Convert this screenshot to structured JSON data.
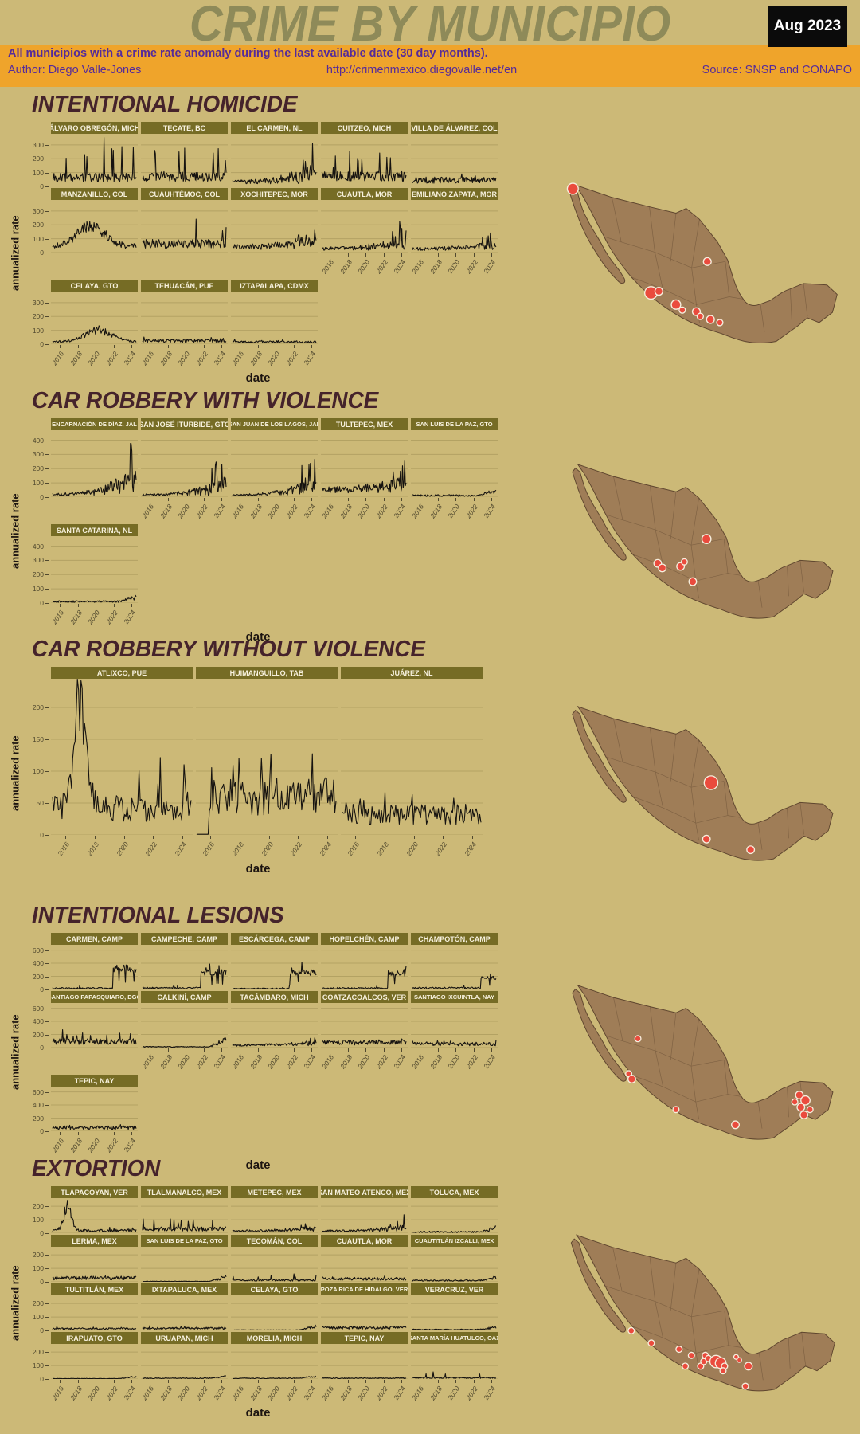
{
  "header": {
    "title": "CRIME BY MUNICIPIO",
    "date_badge": "Aug 2023",
    "subtitle": "All municipios with a crime rate anomaly during the last available date (30 day months).",
    "author": "Author: Diego Valle-Jones",
    "url": "http://crimenmexico.diegovalle.net/en",
    "source": "Source: SNSP and CONAPO"
  },
  "colors": {
    "background": "#ccb977",
    "title_olive": "#8e8a59",
    "banner_orange": "#efa42b",
    "banner_text_purple": "#552b9a",
    "section_title_maroon": "#45232b",
    "facet_header_olive": "#766c25",
    "line_black": "#161310",
    "map_brown": "#9f7d57",
    "map_border_brown": "#5f462f",
    "marker_red": "#ea4b3d",
    "marker_stroke": "#f6eedd"
  },
  "chart_data": {
    "type": "line",
    "xlabel": "date",
    "ylabel": "annualized rate",
    "x_ticks": [
      2016,
      2018,
      2020,
      2022,
      2024
    ],
    "x_range": [
      2015,
      2024.7
    ],
    "grid": true,
    "legend": "none",
    "sections": [
      {
        "title": "INTENTIONAL HOMICIDE",
        "y_ticks": [
          300,
          200,
          100,
          0
        ],
        "ylim": [
          0,
          380
        ],
        "rows": [
          [
            {
              "name": "ÁLVARO OBREGÓN, MICH",
              "shape": "spiky",
              "approx_mean": 70,
              "approx_max": 380
            },
            {
              "name": "TECATE, BC",
              "shape": "spiky",
              "approx_mean": 80,
              "approx_max": 300
            },
            {
              "name": "EL CARMEN, NL",
              "shape": "rise-spike",
              "approx_mean": 45,
              "approx_max": 260
            },
            {
              "name": "CUITZEO, MICH",
              "shape": "spiky",
              "approx_mean": 80,
              "approx_max": 270
            },
            {
              "name": "VILLA DE ÁLVAREZ, COL",
              "shape": "noisy",
              "approx_mean": 45,
              "approx_max": 120
            }
          ],
          [
            {
              "name": "MANZANILLO, COL",
              "shape": "hump",
              "approx_mean": 85,
              "approx_max": 235,
              "peak_at": 0.45
            },
            {
              "name": "CUAUHTÉMOC, COL",
              "shape": "spiky",
              "approx_mean": 70,
              "approx_max": 250
            },
            {
              "name": "XOCHITEPEC, MOR",
              "shape": "rise-spike",
              "approx_mean": 55,
              "approx_max": 190
            },
            {
              "name": "CUAUTLA, MOR",
              "shape": "rise-spike",
              "approx_mean": 38,
              "approx_max": 200
            },
            {
              "name": "EMILIANO ZAPATA, MOR",
              "shape": "rise-spike",
              "approx_mean": 36,
              "approx_max": 130
            }
          ],
          [
            {
              "name": "CELAYA, GTO",
              "shape": "hump",
              "approx_mean": 35,
              "approx_max": 135,
              "peak_at": 0.55
            },
            {
              "name": "TEHUACÁN, PUE",
              "shape": "noisy",
              "approx_mean": 25,
              "approx_max": 70
            },
            {
              "name": "IZTAPALAPA, CDMX",
              "shape": "noisy",
              "approx_mean": 16,
              "approx_max": 40
            }
          ]
        ],
        "map_markers": [
          [
            100,
            57,
            7
          ],
          [
            272,
            150,
            5
          ],
          [
            200,
            190,
            8
          ],
          [
            210,
            188,
            5
          ],
          [
            232,
            205,
            6
          ],
          [
            240,
            212,
            4
          ],
          [
            258,
            214,
            5
          ],
          [
            263,
            220,
            4
          ],
          [
            276,
            224,
            5
          ],
          [
            288,
            228,
            4
          ]
        ]
      },
      {
        "title": "CAR ROBBERY WITH VIOLENCE",
        "y_ticks": [
          400,
          300,
          200,
          100,
          0
        ],
        "ylim": [
          0,
          470
        ],
        "rows": [
          [
            {
              "name": "ENCARNACIÓN DE DÍAZ, JAL",
              "shape": "rise-spike",
              "approx_mean": 25,
              "approx_max": 460
            },
            {
              "name": "SAN JOSÉ ITURBIDE, GTO",
              "shape": "rise-spike",
              "approx_mean": 22,
              "approx_max": 280
            },
            {
              "name": "SAN JUAN DE LOS LAGOS, JAL",
              "shape": "rise-spike",
              "approx_mean": 20,
              "approx_max": 300
            },
            {
              "name": "TULTEPEC, MEX",
              "shape": "rise-spike",
              "approx_mean": 70,
              "approx_max": 210
            },
            {
              "name": "SAN LUIS DE LA PAZ, GTO",
              "shape": "flat-rise",
              "approx_mean": 14,
              "approx_max": 70
            }
          ],
          [
            {
              "name": "SANTA CATARINA, NL",
              "shape": "flat-rise",
              "approx_mean": 14,
              "approx_max": 65
            }
          ]
        ],
        "map_markers": [
          [
            272,
            150,
            6
          ],
          [
            208,
            182,
            5
          ],
          [
            214,
            188,
            5
          ],
          [
            238,
            186,
            5
          ],
          [
            243,
            180,
            4
          ],
          [
            254,
            206,
            5
          ]
        ]
      },
      {
        "title": "CAR ROBBERY WITHOUT VIOLENCE",
        "y_ticks": [
          200,
          150,
          100,
          50,
          0
        ],
        "ylim": [
          0,
          245
        ],
        "rows": [
          [
            {
              "name": "ATLIXCO, PUE",
              "shape": "spike-early",
              "approx_mean": 55,
              "approx_max": 235,
              "peak_at": 0.2
            },
            {
              "name": "HUIMANGUILLO, TAB",
              "shape": "delayed-noisy",
              "approx_mean": 60,
              "approx_max": 130,
              "start_at": 0.08
            },
            {
              "name": "JUÁREZ, NL",
              "shape": "noisy",
              "approx_mean": 33,
              "approx_max": 90
            }
          ]
        ],
        "map_markers": [
          [
            278,
            152,
            9
          ],
          [
            272,
            226,
            5
          ],
          [
            330,
            240,
            5
          ]
        ]
      },
      {
        "title": "INTENTIONAL LESIONS",
        "y_ticks": [
          600,
          400,
          200,
          0
        ],
        "ylim": [
          0,
          680
        ],
        "rows": [
          [
            {
              "name": "CARMEN, CAMP",
              "shape": "step-up",
              "approx_mean": 25,
              "approx_max": 520,
              "step_at": 0.72
            },
            {
              "name": "CAMPECHE, CAMP",
              "shape": "step-up",
              "approx_mean": 30,
              "approx_max": 430,
              "step_at": 0.7
            },
            {
              "name": "ESCÁRCEGA, CAMP",
              "shape": "step-up",
              "approx_mean": 18,
              "approx_max": 420,
              "step_at": 0.68
            },
            {
              "name": "HOPELCHÉN, CAMP",
              "shape": "step-up",
              "approx_mean": 25,
              "approx_max": 400,
              "step_at": 0.78
            },
            {
              "name": "CHAMPOTÓN, CAMP",
              "shape": "step-up",
              "approx_mean": 30,
              "approx_max": 300,
              "step_at": 0.82
            }
          ],
          [
            {
              "name": "SANTIAGO PAPASQUIARO, DGO",
              "shape": "spiky",
              "approx_mean": 100,
              "approx_max": 250
            },
            {
              "name": "CALKINÍ, CAMP",
              "shape": "flat-rise",
              "approx_mean": 15,
              "approx_max": 170
            },
            {
              "name": "TACÁMBARO, MICH",
              "shape": "rise-spike",
              "approx_mean": 50,
              "approx_max": 140
            },
            {
              "name": "COATZACOALCOS, VER",
              "shape": "noisy",
              "approx_mean": 80,
              "approx_max": 170
            },
            {
              "name": "SANTIAGO IXCUINTLA, NAY",
              "shape": "noisy",
              "approx_mean": 55,
              "approx_max": 120
            }
          ],
          [
            {
              "name": "TEPIC, NAY",
              "shape": "noisy",
              "approx_mean": 55,
              "approx_max": 130
            }
          ]
        ],
        "map_markers": [
          [
            182,
            122,
            4
          ],
          [
            170,
            168,
            4
          ],
          [
            174,
            175,
            5
          ],
          [
            232,
            215,
            4
          ],
          [
            310,
            235,
            5
          ],
          [
            394,
            196,
            5
          ],
          [
            402,
            203,
            6
          ],
          [
            396,
            212,
            5
          ],
          [
            408,
            215,
            4
          ],
          [
            400,
            222,
            5
          ],
          [
            388,
            205,
            4
          ]
        ]
      },
      {
        "title": "EXTORTION",
        "y_ticks": [
          200,
          100,
          0
        ],
        "ylim": [
          0,
          260
        ],
        "rows": [
          [
            {
              "name": "TLAPACOYAN, VER",
              "shape": "spike-early",
              "approx_mean": 25,
              "approx_max": 235,
              "peak_at": 0.18
            },
            {
              "name": "TLALMANALCO, MEX",
              "shape": "spiky",
              "approx_mean": 35,
              "approx_max": 120
            },
            {
              "name": "METEPEC, MEX",
              "shape": "rise-spike",
              "approx_mean": 22,
              "approx_max": 75
            },
            {
              "name": "SAN MATEO ATENCO, MEX",
              "shape": "rise-spike",
              "approx_mean": 22,
              "approx_max": 110
            },
            {
              "name": "TOLUCA, MEX",
              "shape": "flat-rise",
              "approx_mean": 12,
              "approx_max": 60
            }
          ],
          [
            {
              "name": "LERMA, MEX",
              "shape": "noisy",
              "approx_mean": 28,
              "approx_max": 90
            },
            {
              "name": "SAN LUIS DE LA PAZ, GTO",
              "shape": "flat-rise",
              "approx_mean": 4,
              "approx_max": 55
            },
            {
              "name": "TECOMÁN, COL",
              "shape": "spiky",
              "approx_mean": 13,
              "approx_max": 65
            },
            {
              "name": "CUAUTLA, MOR",
              "shape": "noisy",
              "approx_mean": 22,
              "approx_max": 60
            },
            {
              "name": "CUAUTITLÁN IZCALLI, MEX",
              "shape": "flat-rise",
              "approx_mean": 12,
              "approx_max": 45
            }
          ],
          [
            {
              "name": "TULTITLÁN, MEX",
              "shape": "noisy",
              "approx_mean": 13,
              "approx_max": 45
            },
            {
              "name": "IXTAPALUCA, MEX",
              "shape": "noisy",
              "approx_mean": 16,
              "approx_max": 45
            },
            {
              "name": "CELAYA, GTO",
              "shape": "flat-rise",
              "approx_mean": 4,
              "approx_max": 50
            },
            {
              "name": "POZA RICA DE HIDALGO, VER",
              "shape": "noisy",
              "approx_mean": 20,
              "approx_max": 55
            },
            {
              "name": "VERACRUZ, VER",
              "shape": "flat-rise",
              "approx_mean": 8,
              "approx_max": 35
            }
          ],
          [
            {
              "name": "IRAPUATO, GTO",
              "shape": "flat-rise",
              "approx_mean": 4,
              "approx_max": 30
            },
            {
              "name": "URUAPAN, MICH",
              "shape": "flat-rise",
              "approx_mean": 7,
              "approx_max": 30
            },
            {
              "name": "MORELIA, MICH",
              "shape": "flat-rise",
              "approx_mean": 7,
              "approx_max": 28
            },
            {
              "name": "TEPIC, NAY",
              "shape": "flat",
              "approx_mean": 7,
              "approx_max": 20
            },
            {
              "name": "SANTA MARÍA HUATULCO, OAX",
              "shape": "spiky",
              "approx_mean": 10,
              "approx_max": 60
            }
          ]
        ],
        "map_markers": [
          [
            236,
            200,
            4
          ],
          [
            244,
            222,
            4
          ],
          [
            264,
            222,
            4
          ],
          [
            268,
            216,
            4
          ],
          [
            252,
            208,
            4
          ],
          [
            270,
            208,
            4
          ],
          [
            274,
            212,
            4
          ],
          [
            284,
            216,
            8
          ],
          [
            290,
            218,
            7
          ],
          [
            295,
            222,
            4
          ],
          [
            293,
            228,
            4
          ],
          [
            310,
            210,
            3
          ],
          [
            314,
            214,
            3
          ],
          [
            326,
            222,
            5
          ],
          [
            322,
            248,
            4
          ],
          [
            200,
            192,
            4
          ],
          [
            174,
            176,
            4
          ]
        ]
      }
    ]
  }
}
